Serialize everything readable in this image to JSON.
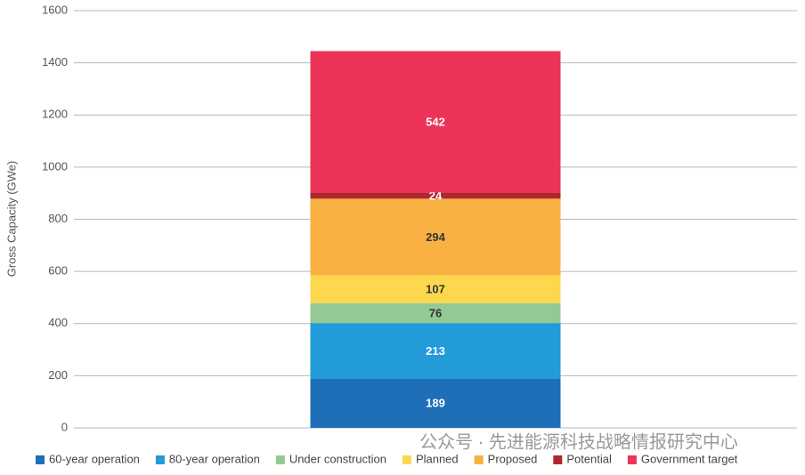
{
  "chart_data": {
    "type": "stacked-bar",
    "y_label": "Gross Capacity (GWe)",
    "categories": [
      null
    ],
    "series": [
      {
        "name": "60-year operation",
        "color": "#1f6fb8",
        "values": [
          189
        ]
      },
      {
        "name": "80-year operation",
        "color": "#229bd8",
        "values": [
          213
        ]
      },
      {
        "name": "Under construction",
        "color": "#93c993",
        "values": [
          76
        ]
      },
      {
        "name": "Planned",
        "color": "#fdd84f",
        "values": [
          107
        ]
      },
      {
        "name": "Proposed",
        "color": "#f8b142",
        "values": [
          294
        ]
      },
      {
        "name": "Potential",
        "color": "#b1262f",
        "values": [
          24
        ]
      },
      {
        "name": "Government target",
        "color": "#ec3459",
        "values": [
          542
        ]
      }
    ],
    "ylim": [
      0,
      1600
    ],
    "yticks": [
      0,
      200,
      400,
      600,
      800,
      1000,
      1200,
      1400,
      1600
    ],
    "grid": true,
    "legend": "bottom",
    "watermark": "公众号 · 先进能源科技战略情报研究中心"
  }
}
